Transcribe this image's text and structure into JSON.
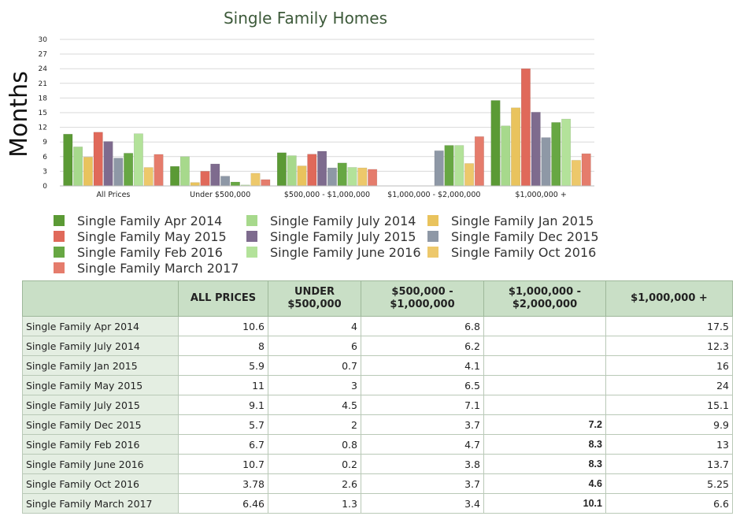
{
  "chart_data": {
    "type": "bar",
    "title": "Single Family Homes",
    "ylabel": "Months",
    "ylim": [
      0,
      30
    ],
    "yticks": [
      "0",
      "3",
      "6",
      "9",
      "12",
      "15",
      "18",
      "21",
      "24",
      "27",
      "30"
    ],
    "categories": [
      "All Prices",
      "Under $500,000",
      "$500,000 - $1,000,000",
      "$1,000,000 - $2,000,000",
      "$1,000,000 +"
    ],
    "series": [
      {
        "name": "Single Family Apr 2014",
        "color": "#5b9a35",
        "values": [
          10.6,
          4,
          6.8,
          null,
          17.5
        ]
      },
      {
        "name": "Single Family July 2014",
        "color": "#a7d98c",
        "values": [
          8,
          6,
          6.2,
          null,
          12.3
        ]
      },
      {
        "name": "Single Family Jan 2015",
        "color": "#e9c35d",
        "values": [
          5.9,
          0.7,
          4.1,
          null,
          16
        ]
      },
      {
        "name": "Single Family May 2015",
        "color": "#e0695a",
        "values": [
          11,
          3,
          6.5,
          null,
          24
        ]
      },
      {
        "name": "Single Family July 2015",
        "color": "#7e6b8e",
        "values": [
          9.1,
          4.5,
          7.1,
          null,
          15.1
        ]
      },
      {
        "name": "Single Family Dec 2015",
        "color": "#8e98a6",
        "values": [
          5.7,
          2,
          3.7,
          7.2,
          9.9
        ]
      },
      {
        "name": "Single Family Feb 2016",
        "color": "#67a743",
        "values": [
          6.7,
          0.8,
          4.7,
          8.3,
          13
        ]
      },
      {
        "name": "Single Family June 2016",
        "color": "#b3e29a",
        "values": [
          10.7,
          0.2,
          3.8,
          8.3,
          13.7
        ]
      },
      {
        "name": "Single Family Oct 2016",
        "color": "#edc86b",
        "values": [
          3.78,
          2.6,
          3.7,
          4.6,
          5.25
        ]
      },
      {
        "name": "Single Family March 2017",
        "color": "#e57c6c",
        "values": [
          6.46,
          1.3,
          3.4,
          10.1,
          6.6
        ]
      }
    ],
    "legend_placement": "bottom",
    "grid": true
  },
  "table": {
    "headers": [
      "",
      "ALL PRICES",
      "UNDER $500,000",
      "$500,000 - $1,000,000",
      "$1,000,000 - $2,000,000",
      "$1,000,000 +"
    ],
    "rows": [
      {
        "label": "Single Family Apr 2014",
        "cells": [
          "10.6",
          "4",
          "6.8",
          "",
          "17.5"
        ]
      },
      {
        "label": "Single Family July 2014",
        "cells": [
          "8",
          "6",
          "6.2",
          "",
          "12.3"
        ]
      },
      {
        "label": "Single Family Jan 2015",
        "cells": [
          "5.9",
          "0.7",
          "4.1",
          "",
          "16"
        ]
      },
      {
        "label": "Single Family May 2015",
        "cells": [
          "11",
          "3",
          "6.5",
          "",
          "24"
        ]
      },
      {
        "label": "Single Family July 2015",
        "cells": [
          "9.1",
          "4.5",
          "7.1",
          "",
          "15.1"
        ]
      },
      {
        "label": "Single Family Dec 2015",
        "cells": [
          "5.7",
          "2",
          "3.7",
          "7.2",
          "9.9"
        ]
      },
      {
        "label": "Single Family Feb 2016",
        "cells": [
          "6.7",
          "0.8",
          "4.7",
          "8.3",
          "13"
        ]
      },
      {
        "label": "Single Family June 2016",
        "cells": [
          "10.7",
          "0.2",
          "3.8",
          "8.3",
          "13.7"
        ]
      },
      {
        "label": "Single Family Oct 2016",
        "cells": [
          "3.78",
          "2.6",
          "3.7",
          "4.6",
          "5.25"
        ]
      },
      {
        "label": "Single Family March 2017",
        "cells": [
          "6.46",
          "1.3",
          "3.4",
          "10.1",
          "6.6"
        ]
      }
    ]
  }
}
